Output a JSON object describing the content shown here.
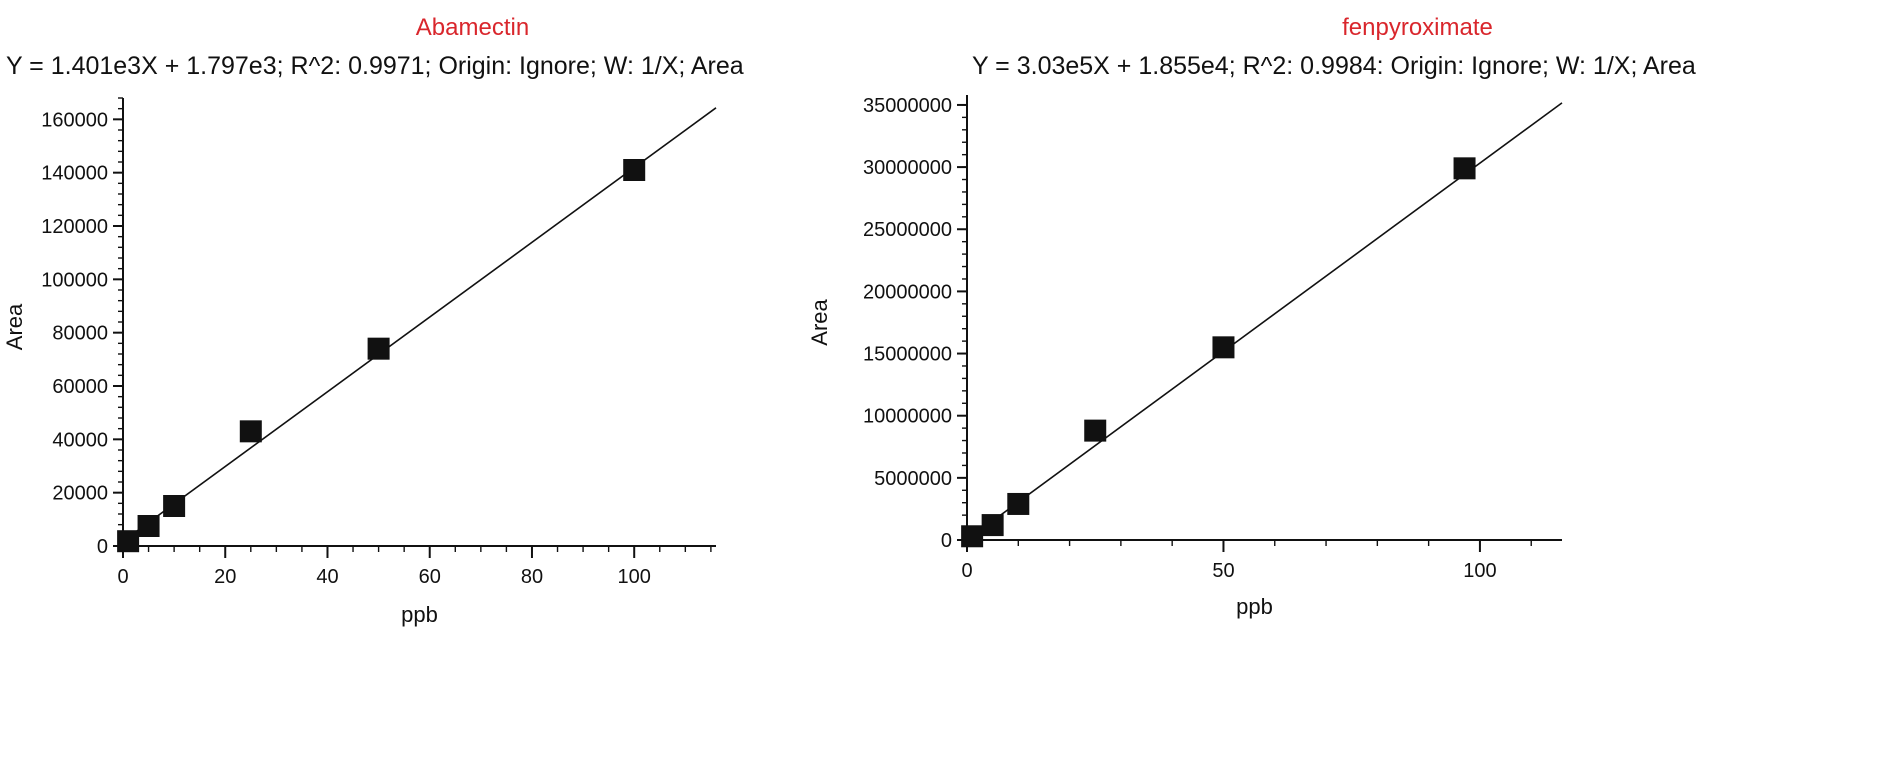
{
  "chart_data": [
    {
      "type": "scatter",
      "title": "Abamectin",
      "subtitle": "Y = 1.401e3X + 1.797e3; R^2: 0.9971; Origin: Ignore; W: 1/X; Area",
      "xlabel": "ppb",
      "ylabel": "Area",
      "xlim": [
        0,
        116
      ],
      "ylim": [
        0,
        168000
      ],
      "x_ticks": [
        0,
        20,
        40,
        60,
        80,
        100
      ],
      "y_ticks": [
        0,
        20000,
        40000,
        60000,
        80000,
        100000,
        120000,
        140000,
        160000
      ],
      "x_minor_step": 5,
      "y_minor_step": 4000,
      "grid": false,
      "points": [
        {
          "x": 1,
          "y": 1800
        },
        {
          "x": 5,
          "y": 7500
        },
        {
          "x": 10,
          "y": 15000
        },
        {
          "x": 25,
          "y": 43000
        },
        {
          "x": 50,
          "y": 74000
        },
        {
          "x": 100,
          "y": 141000
        }
      ],
      "fit": {
        "slope": 1401,
        "intercept": 1797,
        "x_end": 116
      },
      "colors": {
        "title": "#d9262c",
        "marker": "#111111",
        "line": "#111111"
      }
    },
    {
      "type": "scatter",
      "title": "fenpyroximate",
      "subtitle": "Y = 3.03e5X + 1.855e4; R^2: 0.9984: Origin: Ignore; W: 1/X; Area",
      "xlabel": "ppb",
      "ylabel": "Area",
      "xlim": [
        0,
        116
      ],
      "ylim": [
        0,
        35800000
      ],
      "x_ticks": [
        0,
        50,
        100
      ],
      "y_ticks": [
        0,
        5000000,
        10000000,
        15000000,
        20000000,
        25000000,
        30000000,
        35000000
      ],
      "x_minor_step": 10,
      "y_minor_step": 1000000,
      "grid": false,
      "points": [
        {
          "x": 1,
          "y": 300000
        },
        {
          "x": 5,
          "y": 1200000
        },
        {
          "x": 10,
          "y": 2900000
        },
        {
          "x": 25,
          "y": 8800000
        },
        {
          "x": 50,
          "y": 15500000
        },
        {
          "x": 97,
          "y": 29900000
        }
      ],
      "fit": {
        "slope": 303000,
        "intercept": 18550,
        "x_end": 116
      },
      "colors": {
        "title": "#d9262c",
        "marker": "#111111",
        "line": "#111111"
      }
    }
  ]
}
